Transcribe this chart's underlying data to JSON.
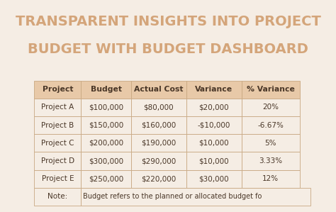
{
  "title_line1": "TRANSPARENT INSIGHTS INTO PROJECT",
  "title_line2": "BUDGET WITH BUDGET DASHBOARD",
  "title_color": "#d4a57a",
  "bg_color": "#f5ede4",
  "header": [
    "Project",
    "Budget",
    "Actual Cost",
    "Variance",
    "% Variance"
  ],
  "rows": [
    [
      "Project A",
      "$100,000",
      "$80,000",
      "$20,000",
      "20%"
    ],
    [
      "Project B",
      "$150,000",
      "$160,000",
      "-$10,000",
      "-6.67%"
    ],
    [
      "Project C",
      "$200,000",
      "$190,000",
      "$10,000",
      "5%"
    ],
    [
      "Project D",
      "$300,000",
      "$290,000",
      "$10,000",
      "3.33%"
    ],
    [
      "Project E",
      "$250,000",
      "$220,000",
      "$30,000",
      "12%"
    ]
  ],
  "note": "Note:   Budget refers to the planned or allocated budget fo",
  "header_bg": "#e8c9a8",
  "row_bg": "#f5ede4",
  "border_color": "#c8a882",
  "text_color": "#4a3728",
  "header_text_color": "#4a3728",
  "cell_font_size": 7.5,
  "header_font_size": 7.8,
  "title_font_size": 14
}
